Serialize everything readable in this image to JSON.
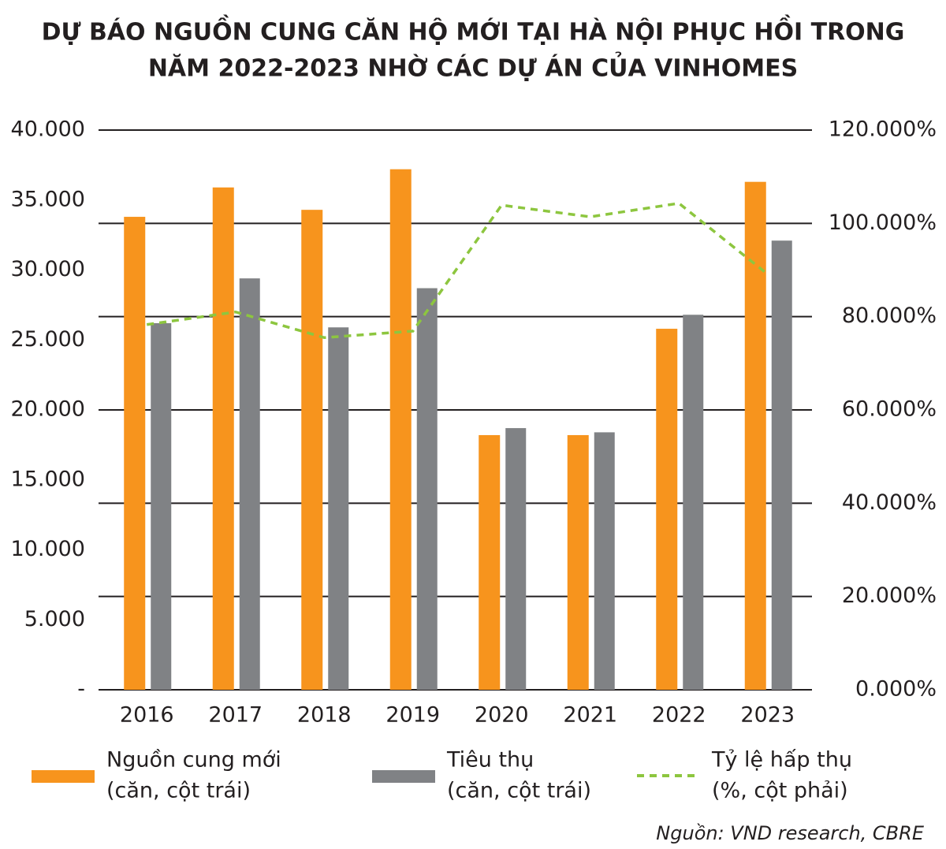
{
  "chart_data": {
    "type": "bar-line",
    "title": "DỰ BÁO NGUỒN CUNG CĂN HỘ MỚI TẠI HÀ NỘI PHỤC HỒI TRONG",
    "subtitle": "NĂM 2022-2023 NHỜ CÁC DỰ ÁN CỦA VINHOMES",
    "categories": [
      "2016",
      "2017",
      "2018",
      "2019",
      "2020",
      "2021",
      "2022",
      "2023"
    ],
    "series": [
      {
        "name": "Nguồn cung mới",
        "note": "(căn, cột trái)",
        "color": "#f7941d",
        "type": "bar",
        "values": [
          33800,
          35900,
          34300,
          37200,
          18200,
          18200,
          25800,
          36300
        ]
      },
      {
        "name": "Tiêu thụ",
        "note": "(căn, cột trái)",
        "color": "#808285",
        "type": "bar",
        "values": [
          26200,
          29400,
          25900,
          28700,
          18700,
          18400,
          26800,
          32100
        ]
      },
      {
        "name": "Tỷ lệ hấp thụ",
        "note": "(%, cột phải)",
        "color": "#8dc63f",
        "type": "line",
        "axis": "y2",
        "values": [
          78.3,
          81,
          75.5,
          76.9,
          103.9,
          101.4,
          104.3,
          89.1
        ]
      }
    ],
    "ylim": [
      0,
      40000
    ],
    "yticks": [
      {
        "value": 0,
        "label": "-"
      },
      {
        "value": 5000,
        "label": "5.000"
      },
      {
        "value": 10000,
        "label": "10.000"
      },
      {
        "value": 15000,
        "label": "15.000"
      },
      {
        "value": 20000,
        "label": "20.000"
      },
      {
        "value": 25000,
        "label": "25.000"
      },
      {
        "value": 30000,
        "label": "30.000"
      },
      {
        "value": 35000,
        "label": "35.000"
      },
      {
        "value": 40000,
        "label": "40.000"
      }
    ],
    "y2lim": [
      0,
      120
    ],
    "y2ticks": [
      {
        "value": 0,
        "label": "0.000%"
      },
      {
        "value": 20,
        "label": "20.000%"
      },
      {
        "value": 40,
        "label": "40.000%"
      },
      {
        "value": 60,
        "label": "60.000%"
      },
      {
        "value": 80,
        "label": "80.000%"
      },
      {
        "value": 100,
        "label": "100.000%"
      },
      {
        "value": 120,
        "label": "120.000%"
      }
    ],
    "grid": true,
    "source": "Nguồn: VND research, CBRE"
  }
}
